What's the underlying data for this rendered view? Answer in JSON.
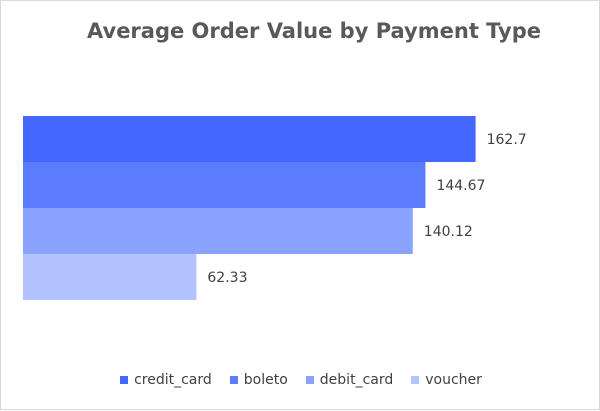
{
  "chart_data": {
    "type": "bar",
    "orientation": "horizontal",
    "title": "Average Order Value by Payment Type",
    "xlabel": "",
    "ylabel": "",
    "categories": [
      "credit_card",
      "boleto",
      "debit_card",
      "voucher"
    ],
    "values": [
      162.7,
      144.67,
      140.12,
      62.33
    ],
    "data_labels": [
      "162.7",
      "144.67",
      "140.12",
      "62.33"
    ],
    "colors": [
      "#4468ff",
      "#5b7cff",
      "#8aa3ff",
      "#b3c3ff"
    ],
    "xlim": [
      0,
      165
    ],
    "grid": false,
    "legend_position": "bottom"
  }
}
